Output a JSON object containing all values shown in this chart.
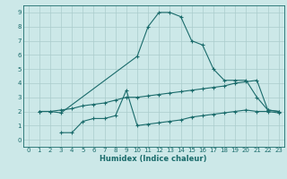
{
  "xlabel": "Humidex (Indice chaleur)",
  "bg_color": "#cce8e8",
  "grid_color": "#aacccc",
  "line_color": "#1a6b6b",
  "xlim": [
    -0.5,
    23.5
  ],
  "ylim": [
    -0.5,
    9.5
  ],
  "xticks": [
    0,
    1,
    2,
    3,
    4,
    5,
    6,
    7,
    8,
    9,
    10,
    11,
    12,
    13,
    14,
    15,
    16,
    17,
    18,
    19,
    20,
    21,
    22,
    23
  ],
  "yticks": [
    0,
    1,
    2,
    3,
    4,
    5,
    6,
    7,
    8,
    9
  ],
  "curve1_x": [
    1,
    2,
    3,
    10,
    11,
    12,
    13,
    14,
    15,
    16,
    17,
    18,
    19,
    20,
    21,
    22,
    23
  ],
  "curve1_y": [
    2.0,
    2.0,
    1.9,
    5.9,
    8.0,
    9.0,
    9.0,
    8.7,
    7.0,
    6.7,
    5.0,
    4.2,
    4.2,
    4.2,
    3.0,
    2.1,
    2.0
  ],
  "curve2_x": [
    1,
    2,
    3,
    4,
    5,
    6,
    7,
    8,
    9,
    10,
    11,
    12,
    13,
    14,
    15,
    16,
    17,
    18,
    19,
    20,
    21,
    22,
    23
  ],
  "curve2_y": [
    2.0,
    2.0,
    2.1,
    2.2,
    2.4,
    2.5,
    2.6,
    2.8,
    3.0,
    3.0,
    3.1,
    3.2,
    3.3,
    3.4,
    3.5,
    3.6,
    3.7,
    3.8,
    4.0,
    4.1,
    4.2,
    2.1,
    2.0
  ],
  "curve3_x": [
    3,
    4,
    5,
    6,
    7,
    8,
    9,
    10,
    11,
    12,
    13,
    14,
    15,
    16,
    17,
    18,
    19,
    20,
    21,
    22,
    23
  ],
  "curve3_y": [
    0.5,
    0.5,
    1.3,
    1.5,
    1.5,
    1.7,
    3.5,
    1.0,
    1.1,
    1.2,
    1.3,
    1.4,
    1.6,
    1.7,
    1.8,
    1.9,
    2.0,
    2.1,
    2.0,
    2.0,
    1.9
  ],
  "xlabel_fontsize": 6.0,
  "tick_fontsize": 5.0
}
